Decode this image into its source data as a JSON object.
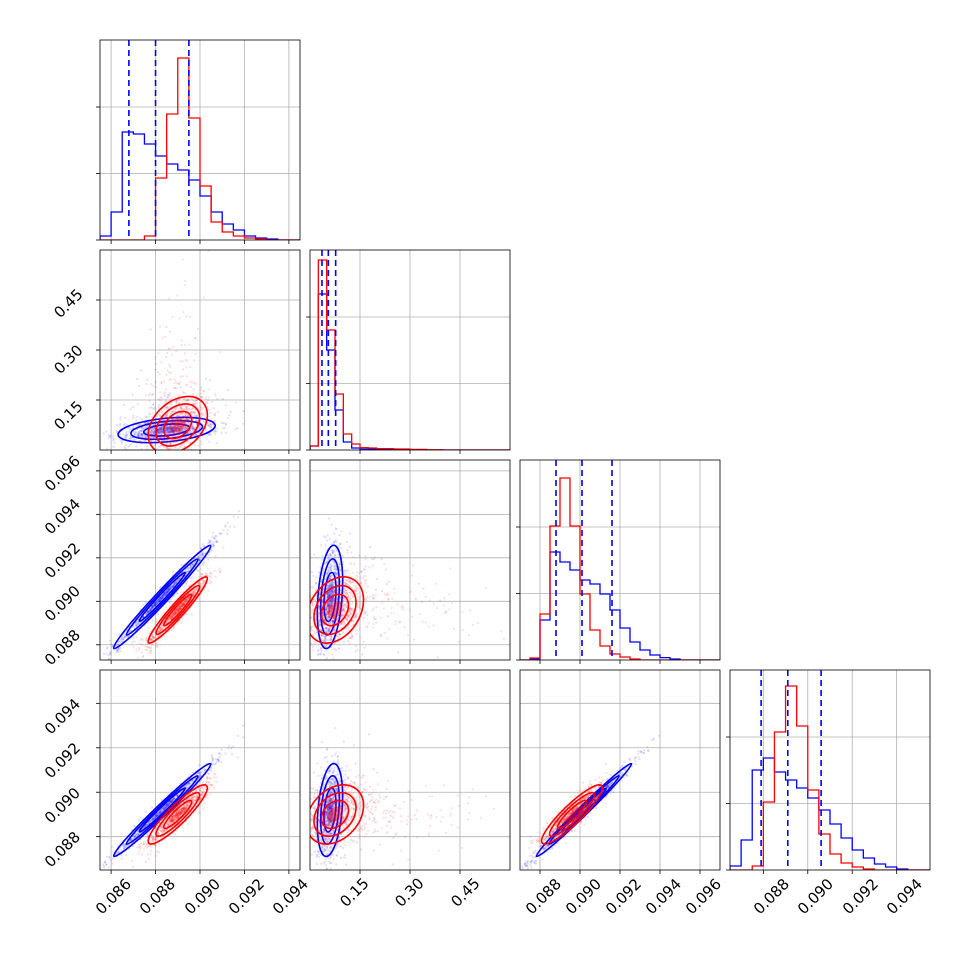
{
  "colors": {
    "blue": "#0000ff",
    "red": "#ff0000",
    "grid": "#b0b0b0"
  },
  "chart_data": [
    {
      "type": "histogram",
      "panel": "p00",
      "xlim": [
        0.0855,
        0.0945
      ],
      "series": [
        {
          "color": "#0000ff",
          "edges": [
            0.0855,
            0.086,
            0.0865,
            0.087,
            0.0875,
            0.088,
            0.0885,
            0.089,
            0.0895,
            0.09,
            0.0905,
            0.091,
            0.0915,
            0.092,
            0.0925,
            0.093,
            0.0935,
            0.094,
            0.0945
          ],
          "counts": [
            0.02,
            0.14,
            0.54,
            0.53,
            0.48,
            0.42,
            0.38,
            0.35,
            0.3,
            0.22,
            0.14,
            0.08,
            0.05,
            0.02,
            0.01,
            0.005,
            0,
            0
          ]
        },
        {
          "color": "#ff0000",
          "edges": [
            0.0855,
            0.086,
            0.0865,
            0.087,
            0.0875,
            0.088,
            0.0885,
            0.089,
            0.0895,
            0.09,
            0.0905,
            0.091,
            0.0915,
            0.092,
            0.0925,
            0.093,
            0.0935,
            0.094,
            0.0945
          ],
          "counts": [
            0,
            0,
            0,
            0,
            0.02,
            0.31,
            0.63,
            0.91,
            0.61,
            0.27,
            0.09,
            0.04,
            0.02,
            0.01,
            0.005,
            0,
            0,
            0
          ]
        }
      ],
      "quantiles": [
        0.0868,
        0.088,
        0.0895
      ]
    },
    {
      "type": "histogram",
      "panel": "p11",
      "xlim": [
        0.0,
        0.6
      ],
      "series": [
        {
          "color": "#0000ff",
          "edges": [
            0,
            0.025,
            0.05,
            0.075,
            0.1,
            0.125,
            0.15,
            0.175,
            0.2,
            0.25,
            0.3,
            0.35,
            0.4,
            0.6
          ],
          "counts": [
            0.02,
            0.78,
            0.5,
            0.2,
            0.04,
            0.01,
            0.005,
            0.004,
            0.003,
            0.002,
            0.001,
            0,
            0
          ]
        },
        {
          "color": "#ff0000",
          "edges": [
            0,
            0.025,
            0.05,
            0.075,
            0.1,
            0.125,
            0.15,
            0.175,
            0.2,
            0.25,
            0.3,
            0.35,
            0.4,
            0.6
          ],
          "counts": [
            0.02,
            0.95,
            0.6,
            0.28,
            0.08,
            0.03,
            0.012,
            0.01,
            0.007,
            0.005,
            0.003,
            0.001,
            0
          ]
        }
      ],
      "quantiles": [
        0.036,
        0.055,
        0.077
      ]
    },
    {
      "type": "histogram",
      "panel": "p22",
      "xlim": [
        0.087,
        0.097
      ],
      "series": [
        {
          "color": "#0000ff",
          "edges": [
            0.087,
            0.0875,
            0.088,
            0.0885,
            0.089,
            0.0895,
            0.09,
            0.0905,
            0.091,
            0.0915,
            0.092,
            0.0925,
            0.093,
            0.0935,
            0.094,
            0.0945,
            0.095,
            0.0955,
            0.096,
            0.097
          ],
          "counts": [
            0,
            0.005,
            0.2,
            0.54,
            0.49,
            0.45,
            0.4,
            0.38,
            0.33,
            0.25,
            0.16,
            0.09,
            0.05,
            0.025,
            0.012,
            0.005,
            0,
            0,
            0
          ]
        },
        {
          "color": "#ff0000",
          "edges": [
            0.087,
            0.0875,
            0.088,
            0.0885,
            0.089,
            0.0895,
            0.09,
            0.0905,
            0.091,
            0.0915,
            0.092,
            0.0925,
            0.093,
            0.0935,
            0.094,
            0.0945,
            0.095,
            0.0955,
            0.096,
            0.097
          ],
          "counts": [
            0,
            0.01,
            0.23,
            0.67,
            0.91,
            0.67,
            0.33,
            0.15,
            0.07,
            0.03,
            0.015,
            0.005,
            0,
            0,
            0,
            0,
            0,
            0,
            0
          ]
        }
      ],
      "quantiles": [
        0.0888,
        0.0901,
        0.0916
      ]
    },
    {
      "type": "histogram",
      "panel": "p33",
      "xlim": [
        0.0865,
        0.0955
      ],
      "series": [
        {
          "color": "#0000ff",
          "edges": [
            0.0865,
            0.087,
            0.0875,
            0.088,
            0.0885,
            0.089,
            0.0895,
            0.09,
            0.0905,
            0.091,
            0.0915,
            0.092,
            0.0925,
            0.093,
            0.0935,
            0.094,
            0.0945,
            0.095,
            0.0955
          ],
          "counts": [
            0.02,
            0.15,
            0.5,
            0.56,
            0.49,
            0.45,
            0.41,
            0.36,
            0.3,
            0.23,
            0.16,
            0.1,
            0.06,
            0.03,
            0.015,
            0.005,
            0,
            0
          ]
        },
        {
          "color": "#ff0000",
          "edges": [
            0.0865,
            0.087,
            0.0875,
            0.088,
            0.0885,
            0.089,
            0.0895,
            0.09,
            0.0905,
            0.091,
            0.0915,
            0.092,
            0.0925,
            0.093,
            0.0935,
            0.094,
            0.0945,
            0.095,
            0.0955
          ],
          "counts": [
            0,
            0,
            0.02,
            0.34,
            0.69,
            0.92,
            0.72,
            0.4,
            0.18,
            0.08,
            0.035,
            0.015,
            0.005,
            0,
            0,
            0,
            0,
            0
          ]
        }
      ],
      "quantiles": [
        0.0879,
        0.0891,
        0.0906
      ]
    },
    {
      "type": "scatter-contour",
      "panel": "p10",
      "xlim": [
        0.0855,
        0.0945
      ],
      "ylim": [
        0.0,
        0.6
      ],
      "series": [
        {
          "color": "#0000ff",
          "mean": [
            0.0885,
            0.06
          ],
          "sd": [
            0.00115,
            0.02
          ],
          "rho": 0.35
        },
        {
          "color": "#ff0000",
          "mean": [
            0.089,
            0.075
          ],
          "sd": [
            0.0007,
            0.045
          ],
          "rho": 0.35
        }
      ]
    },
    {
      "type": "scatter-contour",
      "panel": "p20",
      "xlim": [
        0.0855,
        0.0945
      ],
      "ylim": [
        0.0873,
        0.0965
      ],
      "series": [
        {
          "color": "#0000ff",
          "mean": [
            0.0883,
            0.0902
          ],
          "sd": [
            0.00115,
            0.00125
          ],
          "rho": 0.985
        },
        {
          "color": "#ff0000",
          "mean": [
            0.089,
            0.0896
          ],
          "sd": [
            0.0007,
            0.0008
          ],
          "rho": 0.95
        }
      ]
    },
    {
      "type": "scatter-contour",
      "panel": "p21",
      "xlim": [
        0.0,
        0.6
      ],
      "ylim": [
        0.0873,
        0.0965
      ],
      "series": [
        {
          "color": "#0000ff",
          "mean": [
            0.06,
            0.0902
          ],
          "sd": [
            0.02,
            0.00125
          ],
          "rho": 0.3
        },
        {
          "color": "#ff0000",
          "mean": [
            0.075,
            0.0896
          ],
          "sd": [
            0.045,
            0.0008
          ],
          "rho": 0.3
        }
      ]
    },
    {
      "type": "scatter-contour",
      "panel": "p30",
      "xlim": [
        0.0855,
        0.0945
      ],
      "ylim": [
        0.0865,
        0.0955
      ],
      "series": [
        {
          "color": "#0000ff",
          "mean": [
            0.0883,
            0.0892
          ],
          "sd": [
            0.00115,
            0.0011
          ],
          "rho": 0.985
        },
        {
          "color": "#ff0000",
          "mean": [
            0.089,
            0.089
          ],
          "sd": [
            0.0007,
            0.0007
          ],
          "rho": 0.9
        }
      ]
    },
    {
      "type": "scatter-contour",
      "panel": "p31",
      "xlim": [
        0.0,
        0.6
      ],
      "ylim": [
        0.0865,
        0.0955
      ],
      "series": [
        {
          "color": "#0000ff",
          "mean": [
            0.06,
            0.0892
          ],
          "sd": [
            0.02,
            0.0011
          ],
          "rho": 0.3
        },
        {
          "color": "#ff0000",
          "mean": [
            0.075,
            0.089
          ],
          "sd": [
            0.045,
            0.0007
          ],
          "rho": 0.3
        }
      ]
    },
    {
      "type": "scatter-contour",
      "panel": "p32",
      "xlim": [
        0.087,
        0.097
      ],
      "ylim": [
        0.0865,
        0.0955
      ],
      "series": [
        {
          "color": "#0000ff",
          "mean": [
            0.0902,
            0.0892
          ],
          "sd": [
            0.00125,
            0.0011
          ],
          "rho": 0.99
        },
        {
          "color": "#ff0000",
          "mean": [
            0.0896,
            0.089
          ],
          "sd": [
            0.0008,
            0.0007
          ],
          "rho": 0.9
        }
      ]
    }
  ],
  "axes": {
    "x0": {
      "ticks": [
        0.086,
        0.088,
        0.09,
        0.092,
        0.094
      ],
      "labels": [
        "0.086",
        "0.088",
        "0.090",
        "0.092",
        "0.094"
      ]
    },
    "x1": {
      "ticks": [
        0.15,
        0.3,
        0.45
      ],
      "labels": [
        "0.15",
        "0.30",
        "0.45"
      ]
    },
    "x2": {
      "ticks": [
        0.088,
        0.09,
        0.092,
        0.094,
        0.096
      ],
      "labels": [
        "0.088",
        "0.090",
        "0.092",
        "0.094",
        "0.096"
      ]
    },
    "x3": {
      "ticks": [
        0.088,
        0.09,
        0.092,
        0.094
      ],
      "labels": [
        "0.088",
        "0.090",
        "0.092",
        "0.094"
      ]
    },
    "y1": {
      "ticks": [
        0.15,
        0.3,
        0.45
      ],
      "labels": [
        "0.15",
        "0.30",
        "0.45"
      ]
    },
    "y2": {
      "ticks": [
        0.088,
        0.09,
        0.092,
        0.094,
        0.096
      ],
      "labels": [
        "0.088",
        "0.090",
        "0.092",
        "0.094",
        "0.096"
      ]
    },
    "y3": {
      "ticks": [
        0.088,
        0.09,
        0.092,
        0.094
      ],
      "labels": [
        "0.088",
        "0.090",
        "0.092",
        "0.094"
      ]
    }
  }
}
